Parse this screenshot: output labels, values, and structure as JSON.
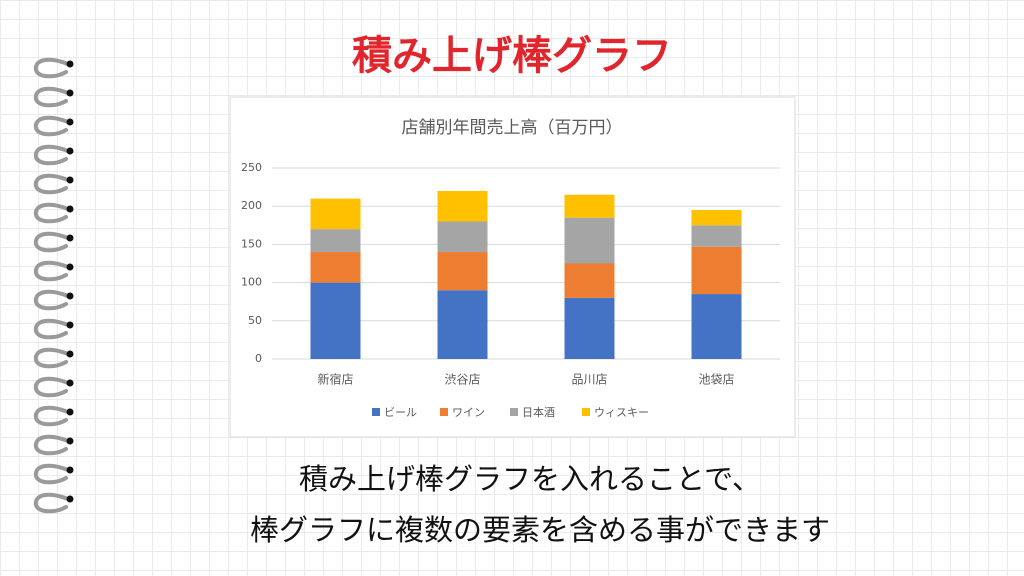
{
  "slide_title": "積み上げ棒グラフ",
  "caption": [
    "積み上げ棒グラフを入れることで、",
    "棒グラフに複数の要素を含める事ができます"
  ],
  "chart_data": {
    "type": "stacked_bar",
    "title": "店舗別年間売上高（百万円）",
    "categories": [
      "新宿店",
      "渋谷店",
      "品川店",
      "池袋店"
    ],
    "series": [
      {
        "name": "ビール",
        "color": "#4472c4",
        "values": [
          100,
          90,
          80,
          85
        ]
      },
      {
        "name": "ワイン",
        "color": "#ed7d31",
        "values": [
          40,
          50,
          45,
          62
        ]
      },
      {
        "name": "日本酒",
        "color": "#a5a5a5",
        "values": [
          30,
          40,
          60,
          28
        ]
      },
      {
        "name": "ウィスキー",
        "color": "#ffc000",
        "values": [
          40,
          40,
          30,
          20
        ]
      }
    ],
    "ylim": [
      0,
      250
    ],
    "yticks": [
      0,
      50,
      100,
      150,
      200,
      250
    ],
    "grid": true,
    "legend": "bottom"
  }
}
